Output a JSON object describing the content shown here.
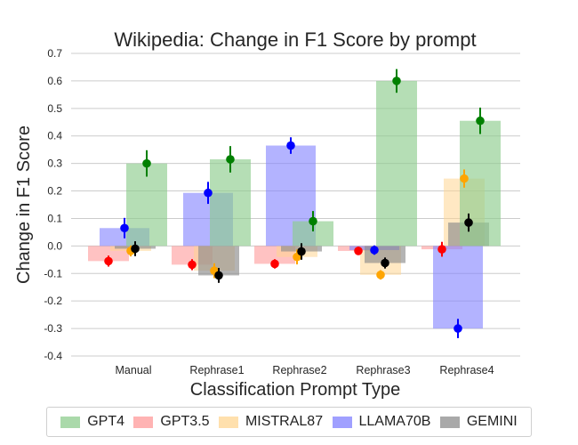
{
  "chart_data": {
    "type": "bar",
    "title": "Wikipedia: Change in F1 Score by prompt",
    "xlabel": "Classification Prompt Type",
    "ylabel": "Change in F1 Score",
    "ylim": [
      -0.4,
      0.7
    ],
    "yticks": [
      "-0.4",
      "-0.3",
      "-0.2",
      "-0.1",
      "0.0",
      "0.1",
      "0.2",
      "0.3",
      "0.4",
      "0.5",
      "0.6",
      "0.7"
    ],
    "categories": [
      "Manual",
      "Rephrase1",
      "Rephrase2",
      "Rephrase3",
      "Rephrase4"
    ],
    "grid": "horizontal",
    "legend_position": "bottom",
    "series": [
      {
        "name": "GPT4",
        "color": "#8dcc8d",
        "dot_color": "#008000",
        "values": [
          0.3,
          0.315,
          0.09,
          0.6,
          0.455
        ],
        "errors": [
          0.048,
          0.048,
          0.037,
          0.043,
          0.048
        ]
      },
      {
        "name": "GPT3.5",
        "color": "#ff9a9a",
        "dot_color": "#ff0000",
        "values": [
          -0.055,
          -0.068,
          -0.065,
          -0.018,
          -0.012
        ],
        "errors": [
          0.02,
          0.02,
          0.017,
          0.015,
          0.027
        ]
      },
      {
        "name": "MISTRAL87",
        "color": "#ffd591",
        "dot_color": "#ffa500",
        "values": [
          -0.018,
          -0.09,
          -0.04,
          -0.105,
          0.245
        ],
        "errors": [
          0.02,
          0.027,
          0.027,
          0.017,
          0.033
        ]
      },
      {
        "name": "LLAMA70B",
        "color": "#8080ff",
        "dot_color": "#0000ff",
        "values": [
          0.065,
          0.193,
          0.365,
          -0.015,
          -0.3
        ],
        "errors": [
          0.037,
          0.04,
          0.03,
          0.017,
          0.035
        ]
      },
      {
        "name": "GEMINI",
        "color": "#8c8c8c",
        "dot_color": "#000000",
        "values": [
          -0.01,
          -0.107,
          -0.02,
          -0.062,
          0.085
        ],
        "errors": [
          0.027,
          0.027,
          0.03,
          0.02,
          0.033
        ]
      }
    ]
  }
}
